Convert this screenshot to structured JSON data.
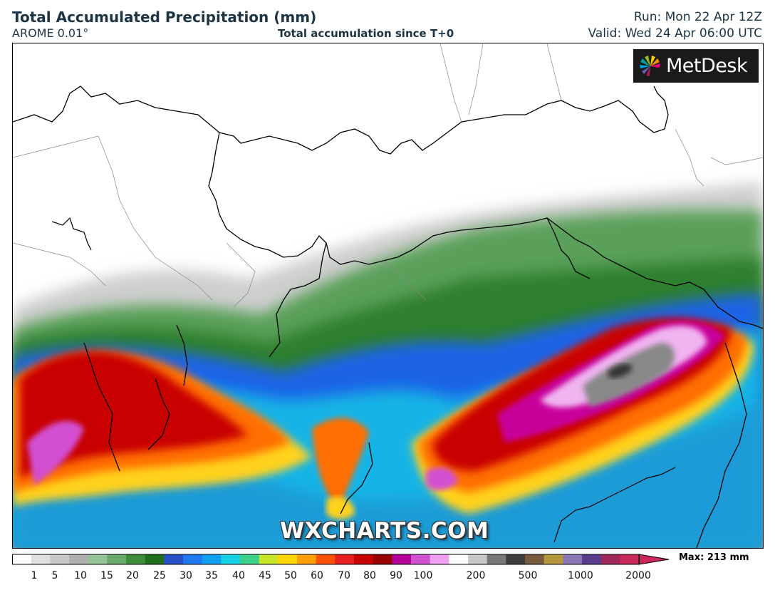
{
  "header": {
    "title": "Total Accumulated Precipitation (mm)",
    "model": "AROME 0.01°",
    "subtitle": "Total accumulation since T+0",
    "run": "Run: Mon 22 Apr 12Z",
    "valid": "Valid: Wed 24 Apr 06:00 UTC"
  },
  "logo": {
    "text": "MetDesk"
  },
  "watermark": "WXCHARTS.COM",
  "colorbar": {
    "tick_labels": [
      "1",
      "5",
      "10",
      "15",
      "20",
      "25",
      "30",
      "35",
      "40",
      "45",
      "50",
      "60",
      "70",
      "80",
      "90",
      "100",
      "200",
      "500",
      "1000",
      "2000"
    ],
    "max_label": "Max: 213 mm",
    "colors": [
      "#ffffff",
      "#e0e0e0",
      "#c8c8c8",
      "#b0b0b0",
      "#96c496",
      "#6aaa6a",
      "#3c8c3c",
      "#1e6e1e",
      "#2850c8",
      "#1e78f0",
      "#10a0f0",
      "#14d2e6",
      "#3cd28c",
      "#c8e628",
      "#ffd700",
      "#ffa000",
      "#ff5000",
      "#e61e1e",
      "#c80000",
      "#960000",
      "#b40096",
      "#d250d2",
      "#f0a0f0",
      "#ffffff",
      "#c8c8c8",
      "#787878",
      "#3c3c3c",
      "#785a3c",
      "#b4963c",
      "#8c78b4",
      "#5a3c8c",
      "#a0285a",
      "#c8285a"
    ]
  }
}
